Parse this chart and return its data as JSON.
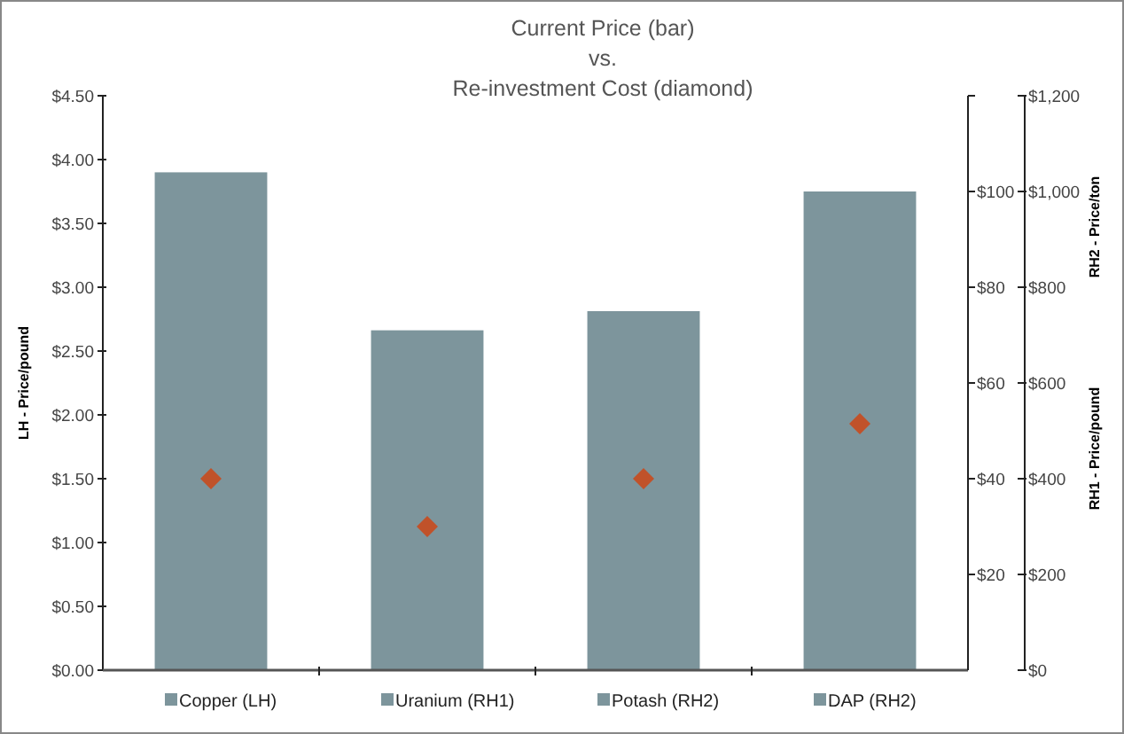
{
  "chart_data": {
    "type": "bar",
    "title": "Current Price (bar)\nvs.\nRe-investment Cost (diamond)",
    "ylabel": "LH - Price/pound",
    "y2label": "RH1 - Price/pound",
    "y3label": "RH2 - Price/ton",
    "categories": [
      null,
      null,
      null,
      null
    ],
    "ylim": [
      0,
      4.5
    ],
    "yticks": [
      {
        "value": 0,
        "label": "$0.00"
      },
      {
        "value": 0.5,
        "label": "$0.50"
      },
      {
        "value": 1,
        "label": "$1.00"
      },
      {
        "value": 1.5,
        "label": "$1.50"
      },
      {
        "value": 2,
        "label": "$2.00"
      },
      {
        "value": 2.5,
        "label": "$2.50"
      },
      {
        "value": 3,
        "label": "$3.00"
      },
      {
        "value": 3.5,
        "label": "$3.50"
      },
      {
        "value": 4,
        "label": "$4.00"
      },
      {
        "value": 4.5,
        "label": "$4.50"
      }
    ],
    "y2lim": [
      0,
      120
    ],
    "y2ticks": [
      {
        "value": 20,
        "label": "$20"
      },
      {
        "value": 40,
        "label": "$40"
      },
      {
        "value": 60,
        "label": "$60"
      },
      {
        "value": 80,
        "label": "$80"
      },
      {
        "value": 100,
        "label": "$100"
      },
      {
        "value": 120,
        "label": null
      }
    ],
    "y3lim": [
      0,
      1200
    ],
    "y3ticks": [
      {
        "value": 0,
        "label": "$0"
      },
      {
        "value": 200,
        "label": "$200"
      },
      {
        "value": 400,
        "label": "$400"
      },
      {
        "value": 600,
        "label": "$600"
      },
      {
        "value": 800,
        "label": "$800"
      },
      {
        "value": 1000,
        "label": "$1,000"
      },
      {
        "value": 1200,
        "label": "$1,200"
      }
    ],
    "legend": "bottom",
    "marker": "diamond",
    "grid": false,
    "series": [
      {
        "name": "Copper (LH)",
        "color": "#7d959c",
        "values": [
          3.9,
          null,
          null,
          null
        ],
        "axis": "y"
      },
      {
        "name": "Uranium (RH1)",
        "color": "#7d959c",
        "values": [
          null,
          71,
          null,
          null
        ],
        "axis": "y2"
      },
      {
        "name": "Potash (RH2)",
        "color": "#7d959c",
        "values": [
          null,
          null,
          750,
          null
        ],
        "axis": "y3"
      },
      {
        "name": "DAP (RH2)",
        "color": "#7d959c",
        "values": [
          null,
          null,
          null,
          1000
        ],
        "axis": "y3"
      },
      {
        "type": "scatter",
        "color": "#c0522a",
        "values": [
          1.5,
          null,
          null,
          null
        ],
        "axis": "y"
      },
      {
        "type": "scatter",
        "color": "#c0522a",
        "values": [
          null,
          30,
          null,
          null
        ],
        "axis": "y2"
      },
      {
        "type": "scatter",
        "color": "#c0522a",
        "values": [
          null,
          null,
          400,
          515
        ],
        "axis": "y3"
      }
    ]
  }
}
